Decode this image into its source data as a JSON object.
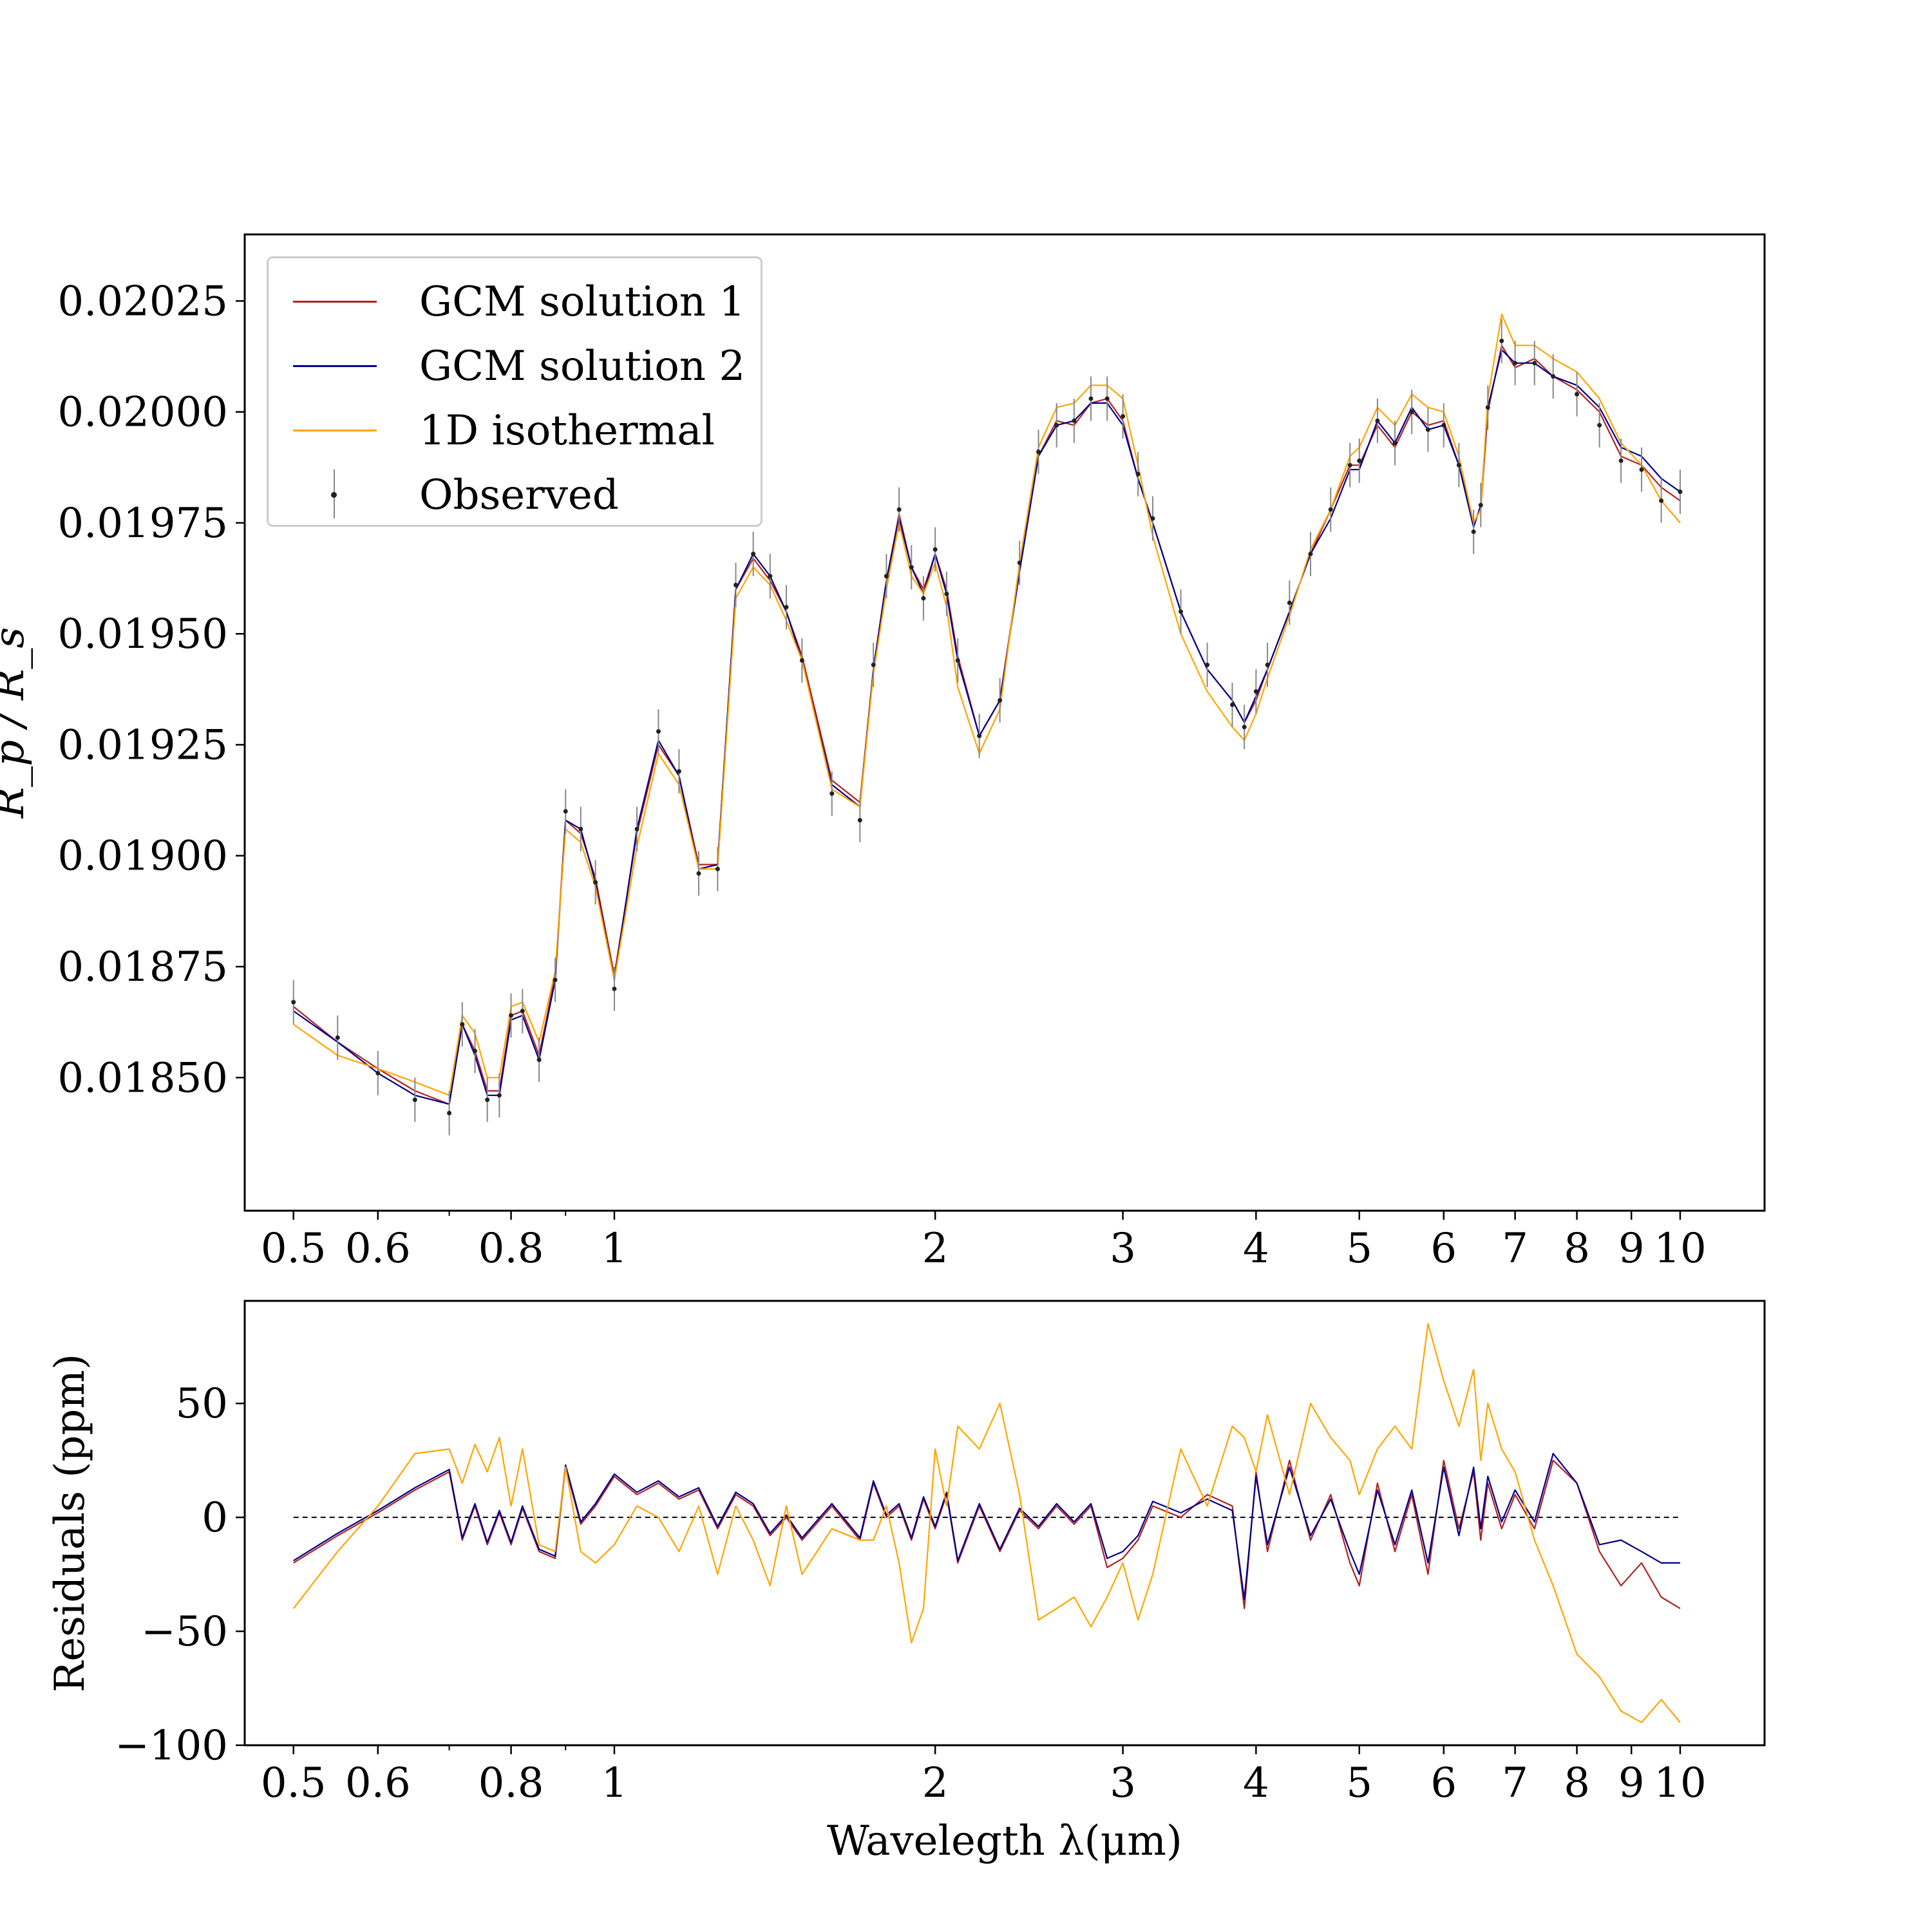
{
  "chart_data": [
    {
      "type": "line",
      "panel": "top",
      "ylabel": "R_p / R_s",
      "xscale": "log",
      "xlim": [
        0.45,
        12
      ],
      "ylim": [
        0.0182,
        0.0204
      ],
      "xticks": [
        {
          "v": 0.5,
          "label": "0.5"
        },
        {
          "v": 0.6,
          "label": "0.6"
        },
        {
          "v": 0.8,
          "label": "0.8"
        },
        {
          "v": 1,
          "label": "1"
        },
        {
          "v": 2,
          "label": "2"
        },
        {
          "v": 3,
          "label": "3"
        },
        {
          "v": 4,
          "label": "4"
        },
        {
          "v": 5,
          "label": "5"
        },
        {
          "v": 6,
          "label": "6"
        },
        {
          "v": 7,
          "label": "7"
        },
        {
          "v": 8,
          "label": "8"
        },
        {
          "v": 9,
          "label": "9"
        },
        {
          "v": 10,
          "label": "10"
        }
      ],
      "yticks": [
        {
          "v": 0.0185,
          "label": "0.01850"
        },
        {
          "v": 0.01875,
          "label": "0.01875"
        },
        {
          "v": 0.019,
          "label": "0.01900"
        },
        {
          "v": 0.01925,
          "label": "0.01925"
        },
        {
          "v": 0.0195,
          "label": "0.01950"
        },
        {
          "v": 0.01975,
          "label": "0.01975"
        },
        {
          "v": 0.02,
          "label": "0.02000"
        },
        {
          "v": 0.02025,
          "label": "0.02025"
        }
      ],
      "x": [
        0.5,
        0.55,
        0.6,
        0.65,
        0.7,
        0.72,
        0.74,
        0.76,
        0.78,
        0.8,
        0.82,
        0.85,
        0.88,
        0.9,
        0.93,
        0.96,
        1.0,
        1.05,
        1.1,
        1.15,
        1.2,
        1.25,
        1.3,
        1.35,
        1.4,
        1.45,
        1.5,
        1.6,
        1.7,
        1.75,
        1.8,
        1.85,
        1.9,
        1.95,
        2.0,
        2.05,
        2.1,
        2.2,
        2.3,
        2.4,
        2.5,
        2.6,
        2.7,
        2.8,
        2.9,
        3.0,
        3.1,
        3.2,
        3.4,
        3.6,
        3.8,
        3.9,
        4.0,
        4.1,
        4.3,
        4.5,
        4.7,
        4.9,
        5.0,
        5.2,
        5.4,
        5.6,
        5.8,
        6.0,
        6.2,
        6.4,
        6.5,
        6.6,
        6.8,
        7.0,
        7.3,
        7.6,
        8.0,
        8.4,
        8.8,
        9.2,
        9.6,
        10.0
      ],
      "series": [
        {
          "name": "GCM solution 1",
          "color": "#b22222",
          "values": [
            0.01866,
            0.01858,
            0.01852,
            0.01847,
            0.01844,
            0.01862,
            0.01856,
            0.01847,
            0.01847,
            0.01864,
            0.01865,
            0.01855,
            0.01873,
            0.01908,
            0.01905,
            0.01895,
            0.01873,
            0.01905,
            0.01925,
            0.01918,
            0.01898,
            0.01898,
            0.0196,
            0.01967,
            0.01962,
            0.01955,
            0.01945,
            0.01917,
            0.01912,
            0.01942,
            0.01962,
            0.01977,
            0.01965,
            0.0196,
            0.01968,
            0.0196,
            0.01945,
            0.01927,
            0.01935,
            0.01965,
            0.0199,
            0.01998,
            0.01997,
            0.02002,
            0.02003,
            0.01998,
            0.01985,
            0.01975,
            0.01955,
            0.01942,
            0.01935,
            0.0193,
            0.01935,
            0.01942,
            0.01955,
            0.01968,
            0.01978,
            0.01988,
            0.01988,
            0.01997,
            0.01992,
            0.02,
            0.01997,
            0.01998,
            0.01988,
            0.01975,
            0.01978,
            0.02,
            0.02015,
            0.0201,
            0.02012,
            0.02008,
            0.02005,
            0.02,
            0.0199,
            0.01988,
            0.01983,
            0.0198
          ]
        },
        {
          "name": "GCM solution 2",
          "color": "#00008b",
          "values": [
            0.01865,
            0.01858,
            0.01851,
            0.01846,
            0.01844,
            0.01862,
            0.01855,
            0.01846,
            0.01846,
            0.01863,
            0.01864,
            0.01854,
            0.01872,
            0.01908,
            0.01906,
            0.01894,
            0.01872,
            0.01906,
            0.01926,
            0.01918,
            0.01897,
            0.01898,
            0.0196,
            0.01968,
            0.01963,
            0.01955,
            0.01944,
            0.01916,
            0.01911,
            0.01942,
            0.01962,
            0.01976,
            0.01965,
            0.01959,
            0.01968,
            0.01959,
            0.01944,
            0.01927,
            0.01935,
            0.01964,
            0.0199,
            0.01997,
            0.01998,
            0.02002,
            0.02002,
            0.01997,
            0.01985,
            0.01975,
            0.01955,
            0.01942,
            0.01935,
            0.0193,
            0.01936,
            0.01942,
            0.01955,
            0.01968,
            0.01976,
            0.01987,
            0.01987,
            0.01998,
            0.01993,
            0.02001,
            0.01996,
            0.01997,
            0.01988,
            0.01974,
            0.01979,
            0.02001,
            0.02014,
            0.02011,
            0.02011,
            0.02008,
            0.02006,
            0.02001,
            0.01992,
            0.0199,
            0.01985,
            0.01982
          ]
        },
        {
          "name": "1D isothermal",
          "color": "#ffa500",
          "values": [
            0.01862,
            0.01855,
            0.01852,
            0.01849,
            0.01846,
            0.01864,
            0.0186,
            0.0185,
            0.0185,
            0.01866,
            0.01867,
            0.01858,
            0.01874,
            0.01906,
            0.01903,
            0.01893,
            0.01872,
            0.01902,
            0.01923,
            0.01916,
            0.01897,
            0.01897,
            0.01958,
            0.01965,
            0.01961,
            0.01953,
            0.01944,
            0.01915,
            0.01911,
            0.01941,
            0.0196,
            0.01975,
            0.01963,
            0.01959,
            0.01966,
            0.01956,
            0.01938,
            0.01923,
            0.01933,
            0.01966,
            0.01992,
            0.02001,
            0.02002,
            0.02006,
            0.02006,
            0.02003,
            0.01988,
            0.01972,
            0.0195,
            0.01937,
            0.01929,
            0.01926,
            0.01932,
            0.0194,
            0.01954,
            0.01969,
            0.01978,
            0.0199,
            0.01992,
            0.02001,
            0.01997,
            0.02004,
            0.02001,
            0.02,
            0.0199,
            0.01975,
            0.01978,
            0.02003,
            0.02022,
            0.02015,
            0.02015,
            0.02012,
            0.02009,
            0.02003,
            0.01993,
            0.01988,
            0.0198,
            0.01975
          ]
        },
        {
          "name": "Observed",
          "color": "#222222",
          "errorbar": 5e-05,
          "values": [
            0.01867,
            0.01859,
            0.01851,
            0.01845,
            0.01842,
            0.01862,
            0.01856,
            0.01845,
            0.01846,
            0.01864,
            0.01865,
            0.01854,
            0.01872,
            0.0191,
            0.01906,
            0.01894,
            0.0187,
            0.01906,
            0.01928,
            0.01919,
            0.01896,
            0.01897,
            0.01961,
            0.01968,
            0.01963,
            0.01956,
            0.01944,
            0.01914,
            0.01908,
            0.01943,
            0.01963,
            0.01978,
            0.01965,
            0.01958,
            0.01969,
            0.01959,
            0.01944,
            0.01927,
            0.01935,
            0.01966,
            0.01991,
            0.01997,
            0.01998,
            0.02003,
            0.02003,
            0.01999,
            0.01986,
            0.01976,
            0.01955,
            0.01943,
            0.01934,
            0.01929,
            0.01937,
            0.01943,
            0.01957,
            0.01968,
            0.01978,
            0.01988,
            0.01989,
            0.01998,
            0.01993,
            0.02,
            0.01996,
            0.01997,
            0.01988,
            0.01973,
            0.01979,
            0.02001,
            0.02016,
            0.02011,
            0.02011,
            0.02008,
            0.02004,
            0.01997,
            0.01989,
            0.01987,
            0.0198,
            0.01982
          ]
        }
      ],
      "legend": {
        "location": "upper-left",
        "entries": [
          "GCM solution 1",
          "GCM solution 2",
          "1D isothermal",
          "Observed"
        ]
      }
    },
    {
      "type": "line",
      "panel": "bottom",
      "ylabel": "Residuals (ppm)",
      "xlabel": "Waveleg​th λ(μm)",
      "xscale": "log",
      "xlim": [
        0.45,
        12
      ],
      "ylim": [
        -100,
        95
      ],
      "yticks": [
        {
          "v": 50,
          "label": "50"
        },
        {
          "v": 0,
          "label": "0"
        },
        {
          "v": -50,
          "label": "−50"
        },
        {
          "v": -100,
          "label": "−100"
        }
      ],
      "zero_line": true,
      "x": [
        0.5,
        0.55,
        0.6,
        0.65,
        0.7,
        0.72,
        0.74,
        0.76,
        0.78,
        0.8,
        0.82,
        0.85,
        0.88,
        0.9,
        0.93,
        0.96,
        1.0,
        1.05,
        1.1,
        1.15,
        1.2,
        1.25,
        1.3,
        1.35,
        1.4,
        1.45,
        1.5,
        1.6,
        1.7,
        1.75,
        1.8,
        1.85,
        1.9,
        1.95,
        2.0,
        2.05,
        2.1,
        2.2,
        2.3,
        2.4,
        2.5,
        2.6,
        2.7,
        2.8,
        2.9,
        3.0,
        3.1,
        3.2,
        3.4,
        3.6,
        3.8,
        3.9,
        4.0,
        4.1,
        4.3,
        4.5,
        4.7,
        4.9,
        5.0,
        5.2,
        5.4,
        5.6,
        5.8,
        6.0,
        6.2,
        6.4,
        6.5,
        6.6,
        6.8,
        7.0,
        7.3,
        7.6,
        8.0,
        8.4,
        8.8,
        9.2,
        9.6,
        10.0
      ],
      "series": [
        {
          "name": "GCM solution 1",
          "color": "#b22222",
          "values": [
            -20,
            -8,
            2,
            12,
            20,
            -10,
            5,
            -12,
            2,
            -12,
            4,
            -15,
            -18,
            22,
            -3,
            5,
            18,
            10,
            15,
            8,
            12,
            -5,
            10,
            5,
            -8,
            0,
            -10,
            5,
            -10,
            15,
            0,
            5,
            -10,
            8,
            -5,
            10,
            -20,
            5,
            -15,
            3,
            -5,
            5,
            -3,
            5,
            -22,
            -18,
            -10,
            5,
            0,
            10,
            5,
            -40,
            20,
            -15,
            25,
            -10,
            10,
            -20,
            -30,
            15,
            -15,
            10,
            -25,
            25,
            -5,
            20,
            -10,
            15,
            -5,
            10,
            -5,
            25,
            15,
            -15,
            -30,
            -20,
            -35,
            -40
          ]
        },
        {
          "name": "GCM solution 2",
          "color": "#00008b",
          "values": [
            -19,
            -7,
            3,
            13,
            21,
            -9,
            6,
            -11,
            3,
            -11,
            5,
            -14,
            -17,
            23,
            -2,
            6,
            19,
            11,
            16,
            9,
            13,
            -4,
            11,
            6,
            -7,
            1,
            -9,
            6,
            -9,
            16,
            1,
            6,
            -9,
            9,
            -4,
            11,
            -19,
            6,
            -14,
            4,
            -4,
            6,
            -2,
            6,
            -18,
            -15,
            -8,
            7,
            2,
            8,
            3,
            -36,
            18,
            -12,
            22,
            -8,
            8,
            -15,
            -25,
            12,
            -12,
            12,
            -20,
            22,
            -8,
            22,
            -5,
            18,
            -2,
            12,
            -2,
            28,
            15,
            -12,
            -10,
            -15,
            -20,
            -20
          ]
        },
        {
          "name": "1D isothermal",
          "color": "#ffa500",
          "values": [
            -40,
            -15,
            5,
            28,
            30,
            15,
            32,
            20,
            35,
            5,
            30,
            -12,
            -15,
            22,
            -15,
            -20,
            -12,
            5,
            0,
            -15,
            5,
            -25,
            5,
            -10,
            -30,
            5,
            -25,
            -5,
            -10,
            -10,
            5,
            -20,
            -55,
            -40,
            30,
            5,
            40,
            30,
            50,
            10,
            -45,
            -40,
            -35,
            -48,
            -35,
            -20,
            -45,
            -25,
            30,
            5,
            40,
            35,
            20,
            45,
            10,
            50,
            35,
            25,
            10,
            30,
            40,
            30,
            85,
            60,
            40,
            65,
            25,
            50,
            30,
            20,
            -10,
            -30,
            -60,
            -70,
            -85,
            -90,
            -80,
            -90
          ]
        }
      ]
    }
  ]
}
